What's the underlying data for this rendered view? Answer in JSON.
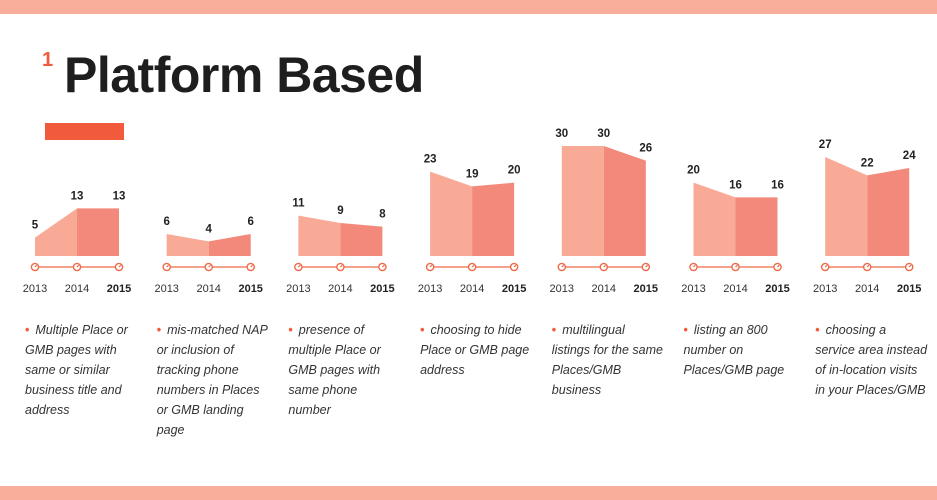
{
  "colors": {
    "band": "#f9ae9c",
    "accent": "#f15a3a",
    "area_light": "#f8aa96",
    "area_dark": "#f2897a",
    "axis": "#ef6a48",
    "text": "#333333"
  },
  "header": {
    "number": "1",
    "title": "Platform Based"
  },
  "chart_data": {
    "type": "area",
    "x": [
      "2013",
      "2014",
      "2015"
    ],
    "y_scale": "each small multiple shares a common value scale",
    "ylim": [
      0,
      30
    ],
    "grid": false,
    "panels": [
      {
        "values": [
          5,
          13,
          13
        ],
        "description": "Multiple Place or GMB pages with same or similar business title and address"
      },
      {
        "values": [
          6,
          4,
          6
        ],
        "description": "mis-matched NAP or inclusion of tracking phone numbers in Places or GMB landing page"
      },
      {
        "values": [
          11,
          9,
          8
        ],
        "description": "presence of multiple Place or GMB pages with same phone number"
      },
      {
        "values": [
          23,
          19,
          20
        ],
        "description": "choosing to hide Place or GMB page address"
      },
      {
        "values": [
          30,
          30,
          26
        ],
        "description": "multilingual listings for the same Places/GMB business"
      },
      {
        "values": [
          20,
          16,
          16
        ],
        "description": "listing an 800 number on Places/GMB page"
      },
      {
        "values": [
          27,
          22,
          24
        ],
        "description": "choosing a service area instead of in-location visits in your Places/GMB"
      }
    ]
  }
}
